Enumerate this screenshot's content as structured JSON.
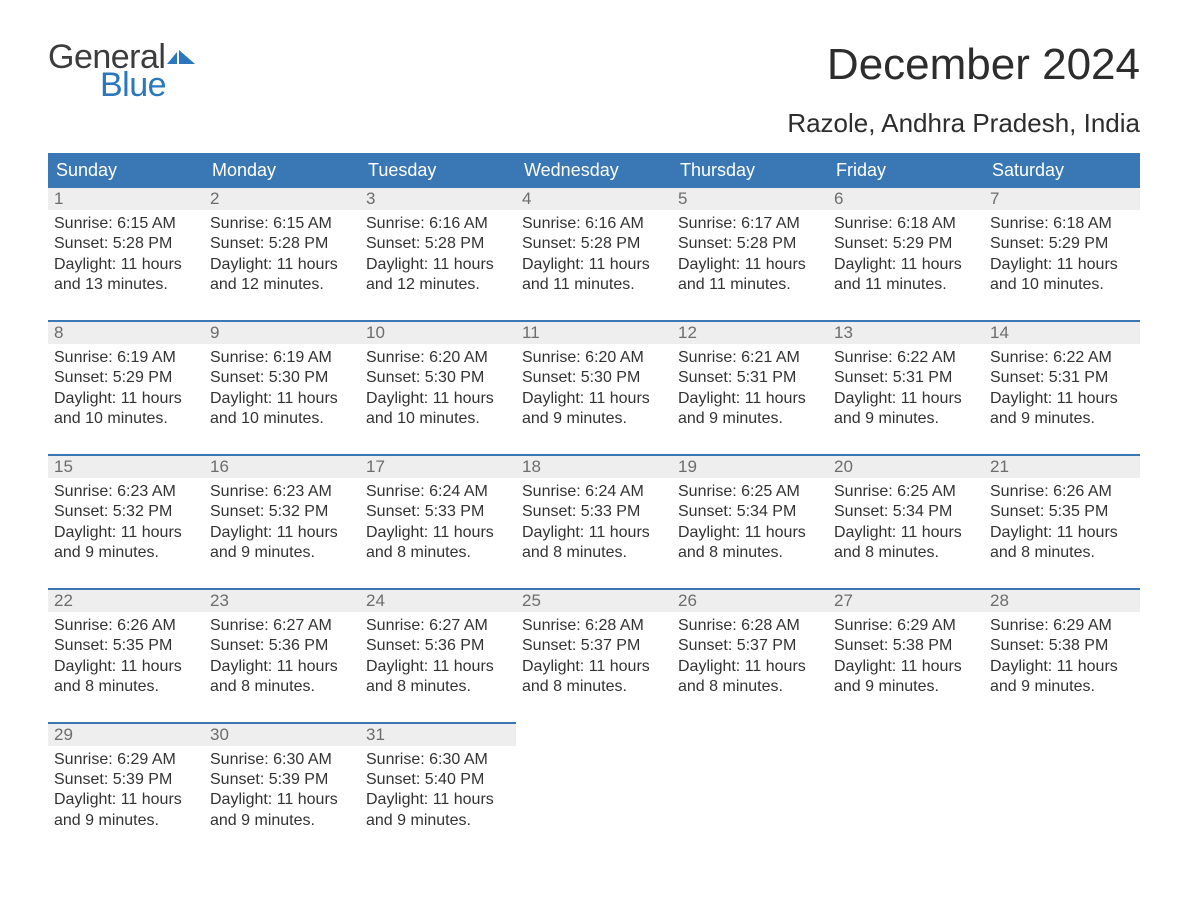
{
  "logo": {
    "line1": "General",
    "line2": "Blue",
    "flag_color": "#2b77bd",
    "text_gray": "#3c3c3c"
  },
  "title": "December 2024",
  "location": "Razole, Andhra Pradesh, India",
  "colors": {
    "header_bg": "#3a78b5",
    "header_text": "#ffffff",
    "daynum_bg": "#eeeeee",
    "daynum_text": "#6d6d6d",
    "body_text": "#333333",
    "page_bg": "#ffffff",
    "row_border": "#3a78b5"
  },
  "fonts": {
    "title_size_pt": 33,
    "location_size_pt": 20,
    "header_size_pt": 14,
    "daynum_size_pt": 13,
    "cell_size_pt": 12
  },
  "layout": {
    "columns": 7,
    "week_rows": 5
  },
  "day_headers": [
    "Sunday",
    "Monday",
    "Tuesday",
    "Wednesday",
    "Thursday",
    "Friday",
    "Saturday"
  ],
  "weeks": [
    [
      {
        "n": "1",
        "sr": "Sunrise: 6:15 AM",
        "ss": "Sunset: 5:28 PM",
        "d1": "Daylight: 11 hours",
        "d2": "and 13 minutes."
      },
      {
        "n": "2",
        "sr": "Sunrise: 6:15 AM",
        "ss": "Sunset: 5:28 PM",
        "d1": "Daylight: 11 hours",
        "d2": "and 12 minutes."
      },
      {
        "n": "3",
        "sr": "Sunrise: 6:16 AM",
        "ss": "Sunset: 5:28 PM",
        "d1": "Daylight: 11 hours",
        "d2": "and 12 minutes."
      },
      {
        "n": "4",
        "sr": "Sunrise: 6:16 AM",
        "ss": "Sunset: 5:28 PM",
        "d1": "Daylight: 11 hours",
        "d2": "and 11 minutes."
      },
      {
        "n": "5",
        "sr": "Sunrise: 6:17 AM",
        "ss": "Sunset: 5:28 PM",
        "d1": "Daylight: 11 hours",
        "d2": "and 11 minutes."
      },
      {
        "n": "6",
        "sr": "Sunrise: 6:18 AM",
        "ss": "Sunset: 5:29 PM",
        "d1": "Daylight: 11 hours",
        "d2": "and 11 minutes."
      },
      {
        "n": "7",
        "sr": "Sunrise: 6:18 AM",
        "ss": "Sunset: 5:29 PM",
        "d1": "Daylight: 11 hours",
        "d2": "and 10 minutes."
      }
    ],
    [
      {
        "n": "8",
        "sr": "Sunrise: 6:19 AM",
        "ss": "Sunset: 5:29 PM",
        "d1": "Daylight: 11 hours",
        "d2": "and 10 minutes."
      },
      {
        "n": "9",
        "sr": "Sunrise: 6:19 AM",
        "ss": "Sunset: 5:30 PM",
        "d1": "Daylight: 11 hours",
        "d2": "and 10 minutes."
      },
      {
        "n": "10",
        "sr": "Sunrise: 6:20 AM",
        "ss": "Sunset: 5:30 PM",
        "d1": "Daylight: 11 hours",
        "d2": "and 10 minutes."
      },
      {
        "n": "11",
        "sr": "Sunrise: 6:20 AM",
        "ss": "Sunset: 5:30 PM",
        "d1": "Daylight: 11 hours",
        "d2": "and 9 minutes."
      },
      {
        "n": "12",
        "sr": "Sunrise: 6:21 AM",
        "ss": "Sunset: 5:31 PM",
        "d1": "Daylight: 11 hours",
        "d2": "and 9 minutes."
      },
      {
        "n": "13",
        "sr": "Sunrise: 6:22 AM",
        "ss": "Sunset: 5:31 PM",
        "d1": "Daylight: 11 hours",
        "d2": "and 9 minutes."
      },
      {
        "n": "14",
        "sr": "Sunrise: 6:22 AM",
        "ss": "Sunset: 5:31 PM",
        "d1": "Daylight: 11 hours",
        "d2": "and 9 minutes."
      }
    ],
    [
      {
        "n": "15",
        "sr": "Sunrise: 6:23 AM",
        "ss": "Sunset: 5:32 PM",
        "d1": "Daylight: 11 hours",
        "d2": "and 9 minutes."
      },
      {
        "n": "16",
        "sr": "Sunrise: 6:23 AM",
        "ss": "Sunset: 5:32 PM",
        "d1": "Daylight: 11 hours",
        "d2": "and 9 minutes."
      },
      {
        "n": "17",
        "sr": "Sunrise: 6:24 AM",
        "ss": "Sunset: 5:33 PM",
        "d1": "Daylight: 11 hours",
        "d2": "and 8 minutes."
      },
      {
        "n": "18",
        "sr": "Sunrise: 6:24 AM",
        "ss": "Sunset: 5:33 PM",
        "d1": "Daylight: 11 hours",
        "d2": "and 8 minutes."
      },
      {
        "n": "19",
        "sr": "Sunrise: 6:25 AM",
        "ss": "Sunset: 5:34 PM",
        "d1": "Daylight: 11 hours",
        "d2": "and 8 minutes."
      },
      {
        "n": "20",
        "sr": "Sunrise: 6:25 AM",
        "ss": "Sunset: 5:34 PM",
        "d1": "Daylight: 11 hours",
        "d2": "and 8 minutes."
      },
      {
        "n": "21",
        "sr": "Sunrise: 6:26 AM",
        "ss": "Sunset: 5:35 PM",
        "d1": "Daylight: 11 hours",
        "d2": "and 8 minutes."
      }
    ],
    [
      {
        "n": "22",
        "sr": "Sunrise: 6:26 AM",
        "ss": "Sunset: 5:35 PM",
        "d1": "Daylight: 11 hours",
        "d2": "and 8 minutes."
      },
      {
        "n": "23",
        "sr": "Sunrise: 6:27 AM",
        "ss": "Sunset: 5:36 PM",
        "d1": "Daylight: 11 hours",
        "d2": "and 8 minutes."
      },
      {
        "n": "24",
        "sr": "Sunrise: 6:27 AM",
        "ss": "Sunset: 5:36 PM",
        "d1": "Daylight: 11 hours",
        "d2": "and 8 minutes."
      },
      {
        "n": "25",
        "sr": "Sunrise: 6:28 AM",
        "ss": "Sunset: 5:37 PM",
        "d1": "Daylight: 11 hours",
        "d2": "and 8 minutes."
      },
      {
        "n": "26",
        "sr": "Sunrise: 6:28 AM",
        "ss": "Sunset: 5:37 PM",
        "d1": "Daylight: 11 hours",
        "d2": "and 8 minutes."
      },
      {
        "n": "27",
        "sr": "Sunrise: 6:29 AM",
        "ss": "Sunset: 5:38 PM",
        "d1": "Daylight: 11 hours",
        "d2": "and 9 minutes."
      },
      {
        "n": "28",
        "sr": "Sunrise: 6:29 AM",
        "ss": "Sunset: 5:38 PM",
        "d1": "Daylight: 11 hours",
        "d2": "and 9 minutes."
      }
    ],
    [
      {
        "n": "29",
        "sr": "Sunrise: 6:29 AM",
        "ss": "Sunset: 5:39 PM",
        "d1": "Daylight: 11 hours",
        "d2": "and 9 minutes."
      },
      {
        "n": "30",
        "sr": "Sunrise: 6:30 AM",
        "ss": "Sunset: 5:39 PM",
        "d1": "Daylight: 11 hours",
        "d2": "and 9 minutes."
      },
      {
        "n": "31",
        "sr": "Sunrise: 6:30 AM",
        "ss": "Sunset: 5:40 PM",
        "d1": "Daylight: 11 hours",
        "d2": "and 9 minutes."
      },
      null,
      null,
      null,
      null
    ]
  ]
}
